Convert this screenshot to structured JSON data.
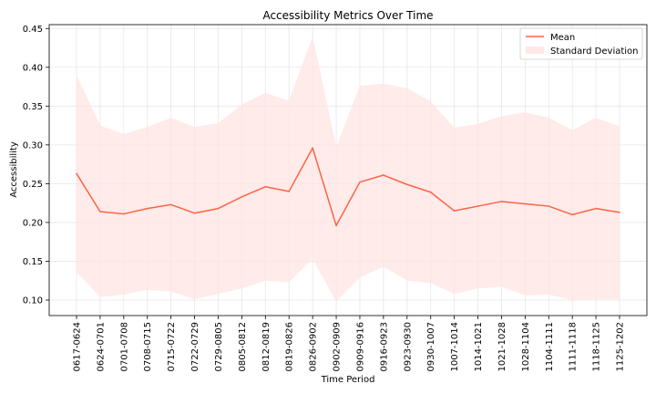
{
  "chart_data": {
    "type": "line",
    "title": "Accessibility Metrics Over Time",
    "xlabel": "Time Period",
    "ylabel": "Accessibility",
    "categories": [
      "0617-0624",
      "0624-0701",
      "0701-0708",
      "0708-0715",
      "0715-0722",
      "0722-0729",
      "0729-0805",
      "0805-0812",
      "0812-0819",
      "0819-0826",
      "0826-0902",
      "0902-0909",
      "0909-0916",
      "0916-0923",
      "0923-0930",
      "0930-1007",
      "1007-1014",
      "1014-1021",
      "1021-1028",
      "1028-1104",
      "1104-1111",
      "1111-1118",
      "1118-1125",
      "1125-1202"
    ],
    "series": [
      {
        "name": "Mean",
        "color": "#ff6347",
        "values": [
          0.263,
          0.214,
          0.211,
          0.218,
          0.223,
          0.212,
          0.218,
          0.233,
          0.246,
          0.24,
          0.296,
          0.196,
          0.252,
          0.261,
          0.249,
          0.239,
          0.215,
          0.221,
          0.227,
          0.224,
          0.221,
          0.21,
          0.218,
          0.213
        ]
      }
    ],
    "band": {
      "name": "Standard Deviation",
      "color": "#ffe4e1",
      "upper": [
        0.39,
        0.325,
        0.314,
        0.323,
        0.335,
        0.323,
        0.328,
        0.352,
        0.367,
        0.357,
        0.44,
        0.297,
        0.376,
        0.379,
        0.373,
        0.356,
        0.322,
        0.327,
        0.337,
        0.342,
        0.335,
        0.319,
        0.335,
        0.324
      ],
      "lower": [
        0.136,
        0.104,
        0.107,
        0.113,
        0.111,
        0.101,
        0.108,
        0.115,
        0.125,
        0.123,
        0.153,
        0.098,
        0.129,
        0.143,
        0.125,
        0.122,
        0.108,
        0.115,
        0.117,
        0.106,
        0.107,
        0.1,
        0.101,
        0.101
      ]
    },
    "yticks": [
      0.1,
      0.15,
      0.2,
      0.25,
      0.3,
      0.35,
      0.4,
      0.45
    ],
    "ytick_labels": [
      "0.10",
      "0.15",
      "0.20",
      "0.25",
      "0.30",
      "0.35",
      "0.40",
      "0.45"
    ],
    "ylim": [
      0.08,
      0.455
    ],
    "grid": true,
    "legend_position": "top-right"
  }
}
